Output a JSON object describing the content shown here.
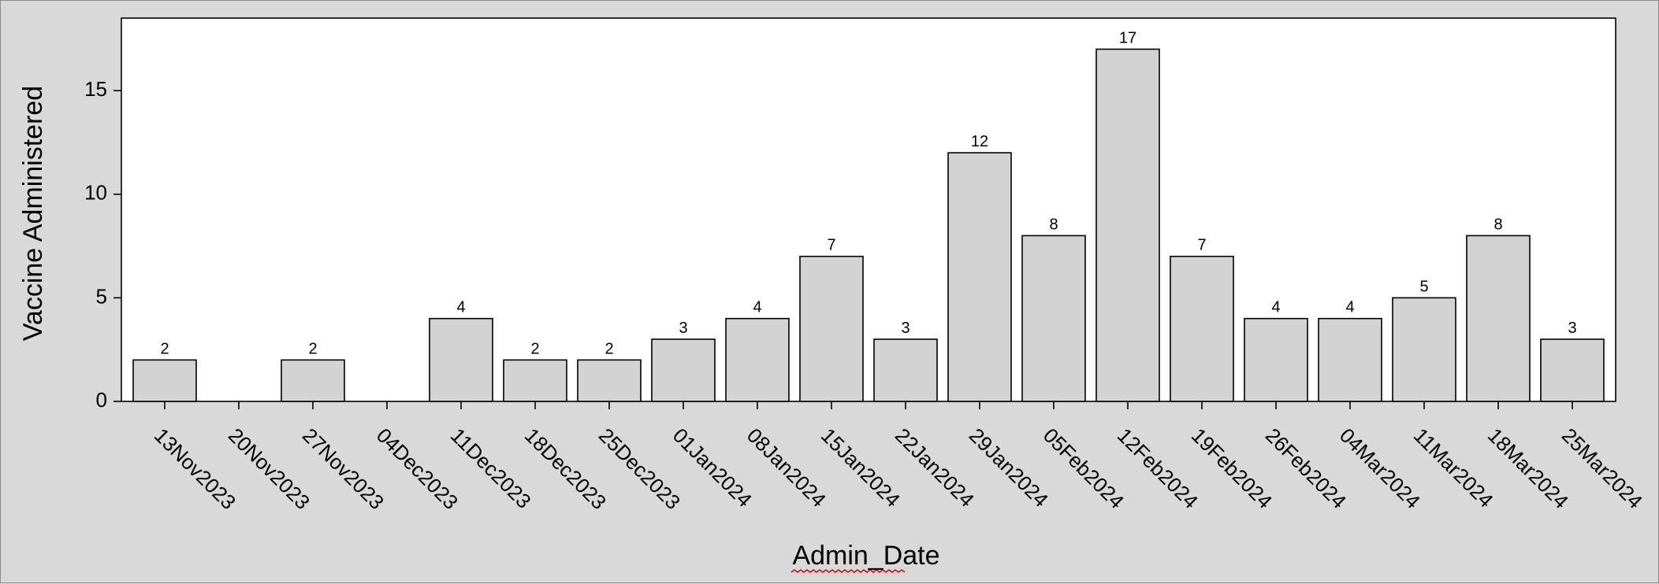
{
  "chart_data": {
    "type": "bar",
    "xlabel": "Admin_Date",
    "ylabel": "Vaccine Administered",
    "ylim": [
      0,
      18.5
    ],
    "yticks": [
      0,
      5,
      10,
      15
    ],
    "grid": false,
    "categories": [
      "13Nov2023",
      "20Nov2023",
      "27Nov2023",
      "04Dec2023",
      "11Dec2023",
      "18Dec2023",
      "25Dec2023",
      "01Jan2024",
      "08Jan2024",
      "15Jan2024",
      "22Jan2024",
      "29Jan2024",
      "05Feb2024",
      "12Feb2024",
      "19Feb2024",
      "26Feb2024",
      "04Mar2024",
      "11Mar2024",
      "18Mar2024",
      "25Mar2024"
    ],
    "values": [
      2,
      0,
      2,
      0,
      4,
      2,
      2,
      3,
      4,
      7,
      3,
      12,
      8,
      17,
      7,
      4,
      4,
      5,
      8,
      3
    ],
    "data_labels": [
      "2",
      "",
      "2",
      "",
      "4",
      "2",
      "2",
      "3",
      "4",
      "7",
      "3",
      "12",
      "8",
      "17",
      "7",
      "4",
      "4",
      "5",
      "8",
      "3"
    ],
    "colors": {
      "bar_fill": "#d3d3d3",
      "bar_stroke": "#000000",
      "background": "#d9d9d9",
      "plot_background": "#ffffff"
    }
  }
}
